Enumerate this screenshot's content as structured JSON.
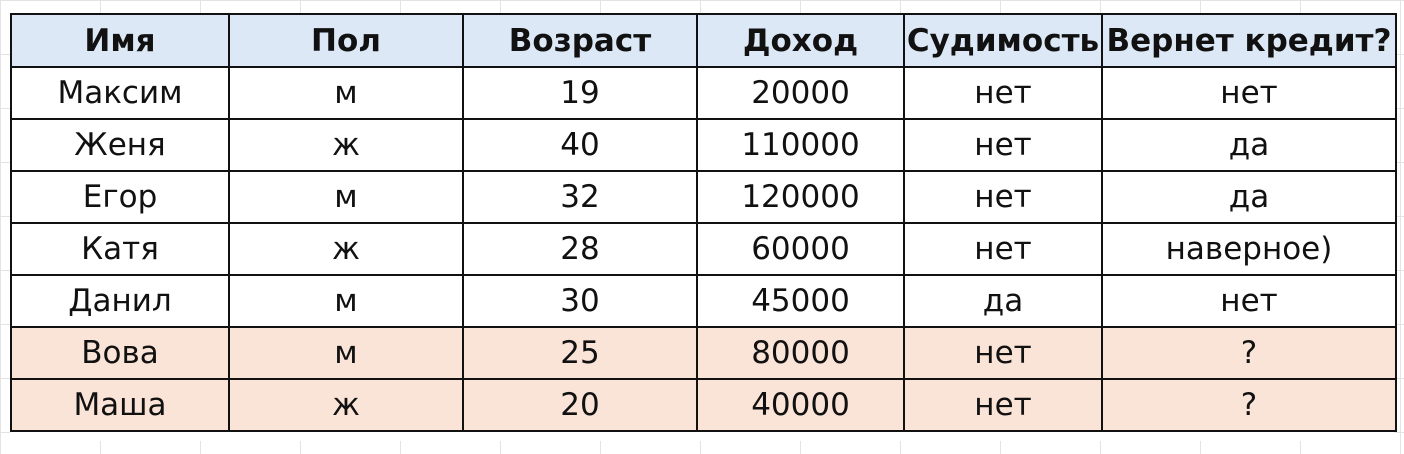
{
  "table": {
    "headers": [
      "Имя",
      "Пол",
      "Возраст",
      "Доход",
      "Судимость",
      "Вернет кредит?"
    ],
    "rows": [
      {
        "name": "Максим",
        "sex": "м",
        "age": "19",
        "income": "20000",
        "conviction": "нет",
        "repay": "нет",
        "highlight": false
      },
      {
        "name": "Женя",
        "sex": "ж",
        "age": "40",
        "income": "110000",
        "conviction": "нет",
        "repay": "да",
        "highlight": false
      },
      {
        "name": "Егор",
        "sex": "м",
        "age": "32",
        "income": "120000",
        "conviction": "нет",
        "repay": "да",
        "highlight": false
      },
      {
        "name": "Катя",
        "sex": "ж",
        "age": "28",
        "income": "60000",
        "conviction": "нет",
        "repay": "наверное)",
        "highlight": false
      },
      {
        "name": "Данил",
        "sex": "м",
        "age": "30",
        "income": "45000",
        "conviction": "да",
        "repay": "нет",
        "highlight": false
      },
      {
        "name": "Вова",
        "sex": "м",
        "age": "25",
        "income": "80000",
        "conviction": "нет",
        "repay": "?",
        "highlight": true
      },
      {
        "name": "Маша",
        "sex": "ж",
        "age": "20",
        "income": "40000",
        "conviction": "нет",
        "repay": "?",
        "highlight": true
      }
    ]
  },
  "colors": {
    "header_bg": "#dde8f6",
    "highlight_bg": "#fae3d7",
    "border": "#111111",
    "text": "#111111"
  }
}
